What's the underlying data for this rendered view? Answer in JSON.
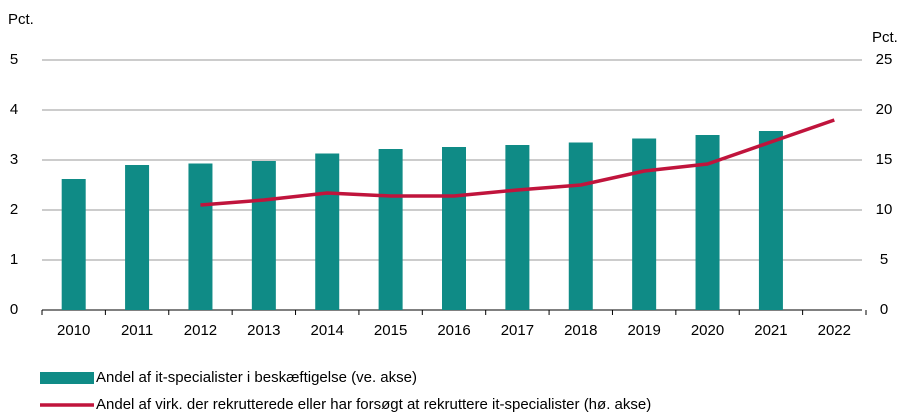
{
  "chart_data": {
    "type": "bar_line",
    "ylabel": "Pct.",
    "y2label": "Pct.",
    "categories": [
      "2010",
      "2011",
      "2012",
      "2013",
      "2014",
      "2015",
      "2016",
      "2017",
      "2018",
      "2019",
      "2020",
      "2021",
      "2022"
    ],
    "series": [
      {
        "name": "Andel af it-specialister i beskæftigelse (ve. akse)",
        "type": "bar",
        "color": "#0f8b86",
        "values": [
          2.62,
          2.9,
          2.93,
          2.98,
          3.13,
          3.22,
          3.26,
          3.3,
          3.35,
          3.43,
          3.5,
          3.58,
          null
        ]
      },
      {
        "name": "Andel af virk. der rekrutterede eller har forsøgt at rekruttere it-specialister (hø. akse)",
        "type": "line",
        "axis": "y2",
        "color": "#c0143c",
        "values": [
          null,
          null,
          10.5,
          11.0,
          11.7,
          11.4,
          11.4,
          12.0,
          12.5,
          13.9,
          14.6,
          16.8,
          19.0
        ]
      }
    ],
    "ylim": [
      0,
      5
    ],
    "yticks": [
      0,
      1,
      2,
      3,
      4,
      5
    ],
    "y2lim": [
      0,
      25
    ],
    "y2ticks": [
      0,
      5,
      10,
      15,
      20,
      25
    ],
    "grid": true
  }
}
